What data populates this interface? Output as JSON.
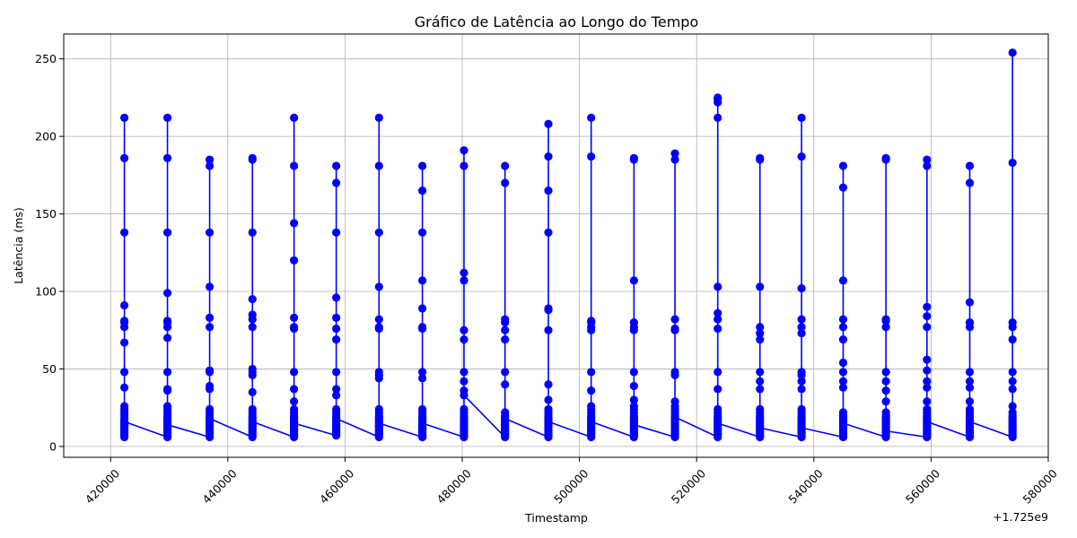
{
  "chart_data": {
    "type": "line",
    "title": "Gráfico de Latência ao Longo do Tempo",
    "xlabel": "Timestamp",
    "ylabel": "Latência (ms)",
    "x_offset_label": "+1.725e9",
    "x_offset": 1725000000,
    "xlim": [
      412000,
      580000
    ],
    "ylim": [
      -7,
      266
    ],
    "x_ticks": [
      {
        "value": 420000,
        "label": "420000"
      },
      {
        "value": 440000,
        "label": "440000"
      },
      {
        "value": 460000,
        "label": "460000"
      },
      {
        "value": 480000,
        "label": "480000"
      },
      {
        "value": 500000,
        "label": "500000"
      },
      {
        "value": 520000,
        "label": "520000"
      },
      {
        "value": 540000,
        "label": "540000"
      },
      {
        "value": 560000,
        "label": "560000"
      },
      {
        "value": 580000,
        "label": "580000"
      }
    ],
    "y_ticks": [
      {
        "value": 0,
        "label": "0"
      },
      {
        "value": 50,
        "label": "50"
      },
      {
        "value": 100,
        "label": "100"
      },
      {
        "value": 150,
        "label": "150"
      },
      {
        "value": 200,
        "label": "200"
      },
      {
        "value": 250,
        "label": "250"
      }
    ],
    "grid": true,
    "colors": {
      "series": "#0000ff"
    },
    "series": [
      {
        "clusters": [
          {
            "x": 422350,
            "values": [
              6,
              7,
              8,
              9,
              10,
              11,
              12,
              13,
              14,
              15,
              16,
              17,
              18,
              20,
              22,
              24,
              26,
              38,
              48,
              67,
              77,
              80,
              81,
              91,
              138,
              186,
              212
            ],
            "end": 16
          },
          {
            "x": 429700,
            "values": [
              6,
              7,
              8,
              9,
              10,
              11,
              12,
              13,
              14,
              15,
              16,
              17,
              18,
              19,
              20,
              22,
              24,
              26,
              36,
              37,
              48,
              70,
              77,
              80,
              81,
              99,
              138,
              186,
              212
            ],
            "end": 14
          },
          {
            "x": 436900,
            "values": [
              6,
              7,
              8,
              9,
              10,
              11,
              12,
              13,
              14,
              15,
              16,
              17,
              18,
              19,
              20,
              22,
              24,
              37,
              39,
              48,
              49,
              77,
              83,
              103,
              138,
              181,
              185
            ],
            "end": 18
          },
          {
            "x": 444200,
            "values": [
              6,
              7,
              8,
              9,
              10,
              11,
              12,
              13,
              14,
              15,
              16,
              17,
              18,
              19,
              20,
              22,
              24,
              35,
              46,
              48,
              50,
              77,
              82,
              85,
              95,
              138,
              185,
              186
            ],
            "end": 16
          },
          {
            "x": 451300,
            "values": [
              6,
              7,
              8,
              9,
              10,
              11,
              12,
              13,
              14,
              15,
              16,
              17,
              18,
              19,
              20,
              22,
              24,
              29,
              37,
              48,
              76,
              77,
              83,
              120,
              144,
              181,
              212
            ],
            "end": 15
          },
          {
            "x": 458500,
            "values": [
              7,
              8,
              9,
              10,
              11,
              12,
              13,
              14,
              15,
              16,
              17,
              18,
              19,
              20,
              22,
              24,
              33,
              37,
              48,
              69,
              76,
              83,
              96,
              138,
              170,
              181
            ],
            "end": 18
          },
          {
            "x": 465800,
            "values": [
              6,
              7,
              8,
              9,
              10,
              11,
              12,
              13,
              14,
              15,
              16,
              17,
              18,
              19,
              20,
              22,
              24,
              44,
              46,
              48,
              76,
              77,
              82,
              103,
              138,
              181,
              212
            ],
            "end": 15
          },
          {
            "x": 473200,
            "values": [
              6,
              7,
              8,
              9,
              10,
              11,
              12,
              13,
              14,
              15,
              16,
              17,
              18,
              19,
              20,
              22,
              24,
              44,
              48,
              76,
              77,
              89,
              107,
              138,
              165,
              181
            ],
            "end": 15
          },
          {
            "x": 480300,
            "values": [
              6,
              7,
              8,
              9,
              10,
              11,
              12,
              13,
              14,
              15,
              16,
              17,
              18,
              19,
              20,
              22,
              24,
              33,
              36,
              42,
              48,
              69,
              75,
              107,
              112,
              181,
              191
            ],
            "end": 33
          },
          {
            "x": 487300,
            "values": [
              6,
              7,
              8,
              9,
              10,
              11,
              12,
              13,
              14,
              15,
              16,
              17,
              18,
              19,
              20,
              22,
              40,
              48,
              69,
              75,
              80,
              82,
              170,
              181
            ],
            "end": 18
          },
          {
            "x": 494700,
            "values": [
              6,
              7,
              8,
              9,
              10,
              11,
              12,
              13,
              14,
              15,
              16,
              17,
              18,
              19,
              20,
              22,
              24,
              30,
              40,
              75,
              88,
              89,
              138,
              165,
              187,
              208
            ],
            "end": 16
          },
          {
            "x": 502000,
            "values": [
              6,
              7,
              8,
              9,
              10,
              11,
              12,
              13,
              14,
              15,
              16,
              17,
              18,
              19,
              20,
              22,
              24,
              26,
              36,
              48,
              75,
              77,
              80,
              81,
              187,
              212
            ],
            "end": 16
          },
          {
            "x": 509300,
            "values": [
              6,
              7,
              8,
              9,
              10,
              11,
              12,
              13,
              14,
              15,
              16,
              17,
              18,
              19,
              20,
              22,
              24,
              26,
              30,
              39,
              48,
              75,
              77,
              80,
              107,
              185,
              186
            ],
            "end": 14
          },
          {
            "x": 516300,
            "values": [
              6,
              7,
              8,
              9,
              10,
              11,
              12,
              13,
              14,
              15,
              16,
              17,
              18,
              19,
              20,
              22,
              24,
              26,
              29,
              46,
              48,
              75,
              76,
              82,
              185,
              189
            ],
            "end": 19
          },
          {
            "x": 523600,
            "values": [
              6,
              7,
              8,
              9,
              10,
              11,
              12,
              13,
              14,
              15,
              16,
              17,
              18,
              19,
              20,
              22,
              24,
              37,
              48,
              76,
              82,
              86,
              103,
              212,
              222,
              224,
              225
            ],
            "end": 15
          },
          {
            "x": 530800,
            "values": [
              6,
              7,
              8,
              9,
              10,
              11,
              12,
              13,
              14,
              15,
              16,
              17,
              18,
              19,
              20,
              22,
              24,
              37,
              42,
              48,
              69,
              73,
              77,
              103,
              185,
              186
            ],
            "end": 12
          },
          {
            "x": 537900,
            "values": [
              6,
              7,
              8,
              9,
              10,
              11,
              12,
              13,
              14,
              15,
              16,
              17,
              18,
              19,
              20,
              22,
              24,
              37,
              42,
              46,
              48,
              73,
              77,
              82,
              102,
              187,
              212
            ],
            "end": 12
          },
          {
            "x": 545000,
            "values": [
              6,
              7,
              8,
              9,
              10,
              11,
              12,
              13,
              14,
              15,
              16,
              17,
              18,
              19,
              20,
              22,
              38,
              42,
              48,
              54,
              69,
              77,
              82,
              107,
              167,
              181
            ],
            "end": 15
          },
          {
            "x": 552300,
            "values": [
              6,
              7,
              8,
              9,
              10,
              11,
              12,
              13,
              14,
              15,
              16,
              17,
              18,
              19,
              20,
              22,
              29,
              36,
              42,
              48,
              77,
              81,
              82,
              185,
              186
            ],
            "end": 10
          },
          {
            "x": 559300,
            "values": [
              6,
              7,
              8,
              9,
              10,
              11,
              12,
              13,
              14,
              15,
              16,
              17,
              18,
              19,
              20,
              22,
              24,
              29,
              38,
              42,
              49,
              56,
              77,
              84,
              90,
              181,
              185
            ],
            "end": 16
          },
          {
            "x": 566600,
            "values": [
              6,
              7,
              8,
              9,
              10,
              11,
              12,
              13,
              14,
              15,
              16,
              17,
              18,
              19,
              20,
              22,
              24,
              29,
              38,
              42,
              48,
              77,
              80,
              93,
              170,
              181
            ],
            "end": 16
          },
          {
            "x": 573900,
            "values": [
              6,
              7,
              8,
              9,
              10,
              11,
              12,
              13,
              14,
              15,
              16,
              17,
              18,
              19,
              20,
              22,
              26,
              37,
              42,
              48,
              69,
              77,
              80,
              183,
              254
            ],
            "end": 14
          }
        ]
      }
    ]
  }
}
